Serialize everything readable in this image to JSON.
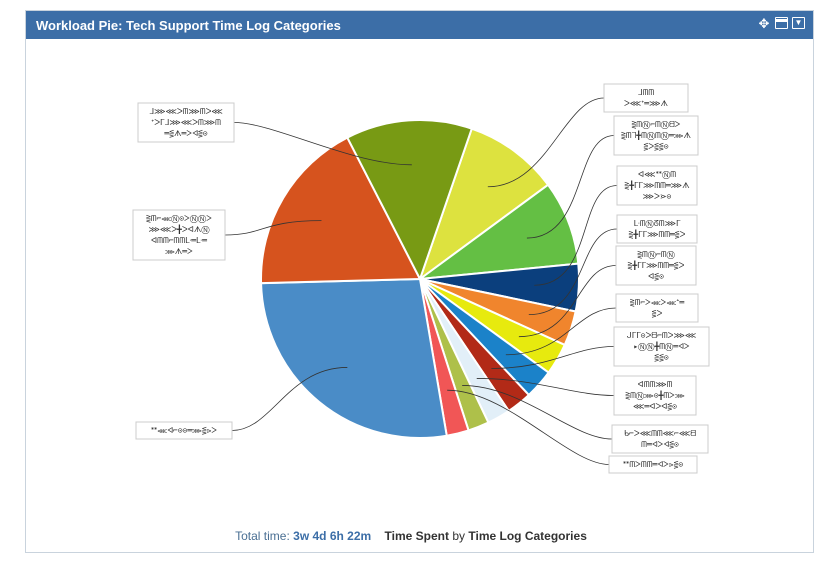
{
  "gadget": {
    "title": "Workload Pie: Tech Support Time Log Categories",
    "icons": [
      "move-icon",
      "maximize-icon",
      "dropdown-icon"
    ]
  },
  "footer": {
    "prefix": "Total time:",
    "total": "3w 4d 6h 22m",
    "metric": "Time Spent",
    "by": "by",
    "group": "Time Log Categories"
  },
  "chart_data": {
    "type": "pie",
    "unit": "share of total time",
    "slices": [
      {
        "label": "ᒧᗰᗰ ᐳ⋘ᐩ═⋙ᗑ ⋚ᐳ⋗⋚⊙",
        "value": 9.0,
        "color": "#dde23f"
      },
      {
        "label": "⋛ᗰⓃ⌐ᗰⓃᗺᐳ ⋛ᗰᒣ╋ᗰⓃᗰⓃ═⋙ᗑ ⋚ᐳ⋚⋚⊙",
        "value": 8.0,
        "color": "#64bf44"
      },
      {
        "label": "ᐊ⋘ᕯⓃᗰ ⋛╋ᒥᒥ⋙ᗰᗰ═⋙ᗑ ⋙ᐳ⋗⊙",
        "value": 4.5,
        "color": "#0b3f7d"
      },
      {
        "label": "ᒷᗰⓃᘔᗰ⋙ᒥ ⋛╋ᒥᒥ⋙ᗰᗰ═⋚ᐳ",
        "value": 3.3,
        "color": "#f0852d"
      },
      {
        "label": "⋛ᗰⓃ⌐ᗰⓃ ⋛╋ᒥᒥ⋙ᗰᗰ═⋚ᐳ ᐊ⋚⊙",
        "value": 3.0,
        "color": "#e7ea0e"
      },
      {
        "label": "⋛ᗰ⌐ᐳ⋘ᐳ⋘ᐩ═ ⋚ᐳ",
        "value": 2.8,
        "color": "#1b82c9"
      },
      {
        "label": "ᒍᒥᒥ⊙ᐳᗺ⌐ᗰᐳ⋙⋘ ▸ⓃⓃ╋ᗰⓃ═ᐊᐳ ⋚⋚⊙",
        "value": 2.4,
        "color": "#b22a17"
      },
      {
        "label": "ᐊᗰᗰ⋙ᗰ ⋛ᗰⓃ⋙⊙╋ᗰᐳ⋙ ⋘═ᐊᐳᐊ⋚⊙",
        "value": 2.2,
        "color": "#e2eff8"
      },
      {
        "label": "ᑲ⌐ᐳ⋘ᗰᗰ⋘⌐⋘ᗺ ᗰ═ᐊᐳᐊ⋚⊙",
        "value": 2.0,
        "color": "#aec04a"
      },
      {
        "label": "ᕯᗰᐳᗰᗰ═ᐊᐳ⋗⋚⊙",
        "value": 2.1,
        "color": "#f15656"
      },
      {
        "label": "ᕯ⋘ᐊ⌐⊙⊙═⋙⋚⋗ᐳ",
        "value": 25.5,
        "color": "#4a8cc7"
      },
      {
        "label": "⋛ᗰ⌐⋘Ⓝ⊙ᐳⓃⓃᐳ ⋙⋘ᐳ╋ᐳᐊᗑⓃ ᐊᗰᗰ⌐ᗰᗰᒷ═ᒷ═ ⋙ᗑ═ᐳ",
        "value": 16.7,
        "color": "#d6531e"
      },
      {
        "label": "ᒧ⋙⋘ᐳᗰ⋙ᗰᐳ⋘ ᐩᐳᒥᒧ⋙⋘ᐳᗰ⋙ᗰ ═⋚ᗑ═ᐳᐊ⋚⊙",
        "value": 12.0,
        "color": "#789a14"
      }
    ]
  }
}
